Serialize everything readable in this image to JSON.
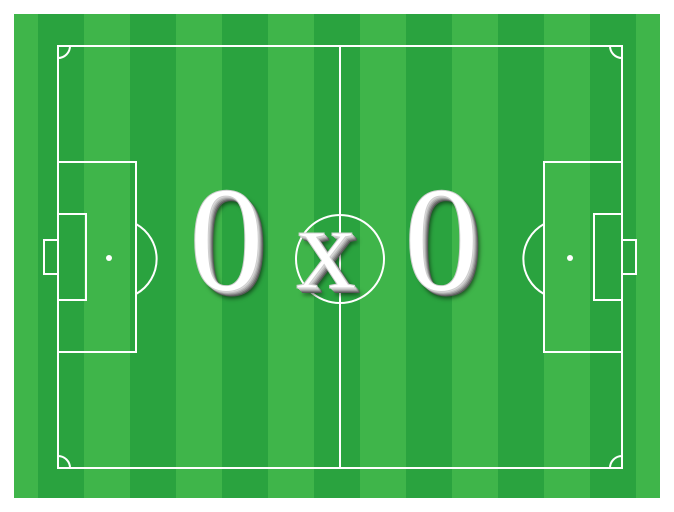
{
  "scoreboard": {
    "home_score": "0",
    "separator": "x",
    "away_score": "0"
  },
  "colors": {
    "stripe_light": "#3fb54a",
    "stripe_dark": "#2aa33f",
    "lines": "#ffffff",
    "score_text": "#ffffff"
  }
}
